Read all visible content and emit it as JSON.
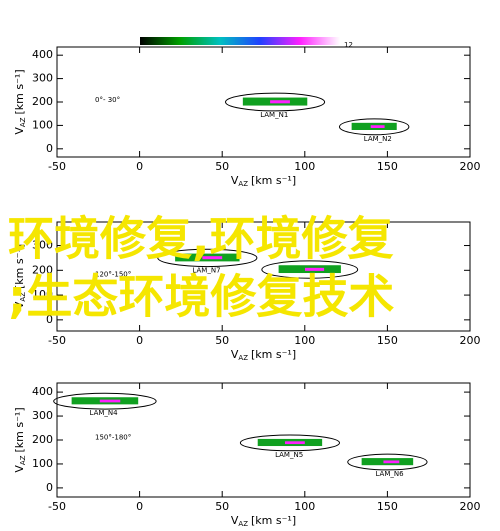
{
  "colorbar": {
    "label": "12",
    "colors": [
      "#000000",
      "#00a000",
      "#00c0c0",
      "#2040ff",
      "#ff20ff",
      "#ffffff"
    ]
  },
  "overlay": {
    "lines": [
      "环境修复,环境修复",
      ";生态环境修复技术"
    ],
    "color": "#f5e600"
  },
  "chart_data": [
    {
      "type": "ellipse-map",
      "xlabel": {
        "main": "V",
        "sub": "AZ",
        "unit": "[km s⁻¹]"
      },
      "ylabel": {
        "main": "V",
        "sub": "AZ",
        "unit": "[km s⁻¹]"
      },
      "xlim": [
        -50,
        200
      ],
      "xticks": [
        -50,
        0,
        50,
        100,
        150,
        200
      ],
      "ylim": [
        -35,
        435
      ],
      "yticks": [
        0,
        100,
        200,
        300,
        400
      ],
      "annotation": "0°- 30°",
      "features": [
        {
          "label": "LAM_N1",
          "cx": 82,
          "cy": 200,
          "rx": 30,
          "ry": 38
        },
        {
          "label": "LAM_N2",
          "cx": 142,
          "cy": 94,
          "rx": 21,
          "ry": 34
        }
      ]
    },
    {
      "type": "ellipse-map",
      "xlabel": {
        "main": "V",
        "sub": "AZ",
        "unit": "[km s⁻¹]"
      },
      "ylabel": {
        "main": "V",
        "sub": "AZ",
        "unit": "[km s⁻¹]"
      },
      "xlim": [
        -50,
        200
      ],
      "xticks": [
        -50,
        0,
        50,
        100,
        150,
        200
      ],
      "ylim": [
        -45,
        395
      ],
      "yticks": [
        0,
        100,
        200,
        300
      ],
      "annotation": "120°-150°",
      "features": [
        {
          "label": "LAM_N7",
          "cx": 41,
          "cy": 250,
          "rx": 30,
          "ry": 35
        },
        {
          "label": null,
          "cx": 103,
          "cy": 203,
          "rx": 29,
          "ry": 35
        }
      ]
    },
    {
      "type": "ellipse-map",
      "xlabel": {
        "main": "V",
        "sub": "AZ",
        "unit": "[km s⁻¹]"
      },
      "ylabel": {
        "main": "V",
        "sub": "AZ",
        "unit": "[km s⁻¹]"
      },
      "xlim": [
        -50,
        200
      ],
      "xticks": [
        -50,
        0,
        50,
        100,
        150,
        200
      ],
      "ylim": [
        -38,
        438
      ],
      "yticks": [
        0,
        100,
        200,
        300,
        400
      ],
      "annotation": "150°-180°",
      "features": [
        {
          "label": "LAM_N4",
          "cx": -21,
          "cy": 362,
          "rx": 31,
          "ry": 33
        },
        {
          "label": "LAM_N5",
          "cx": 91,
          "cy": 188,
          "rx": 30,
          "ry": 33
        },
        {
          "label": "LAM_N6",
          "cx": 150,
          "cy": 108,
          "rx": 24,
          "ry": 33
        }
      ]
    }
  ]
}
